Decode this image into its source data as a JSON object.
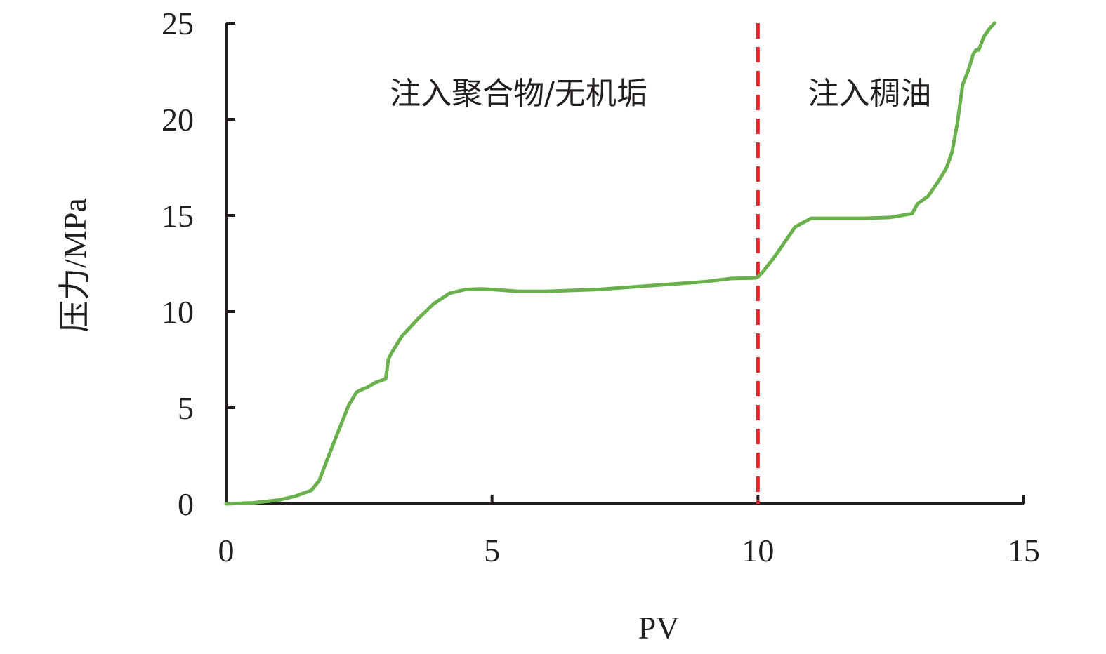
{
  "chart_data": {
    "type": "line",
    "title": "",
    "xlabel": "PV",
    "ylabel": "压力/MPa",
    "xlim": [
      0,
      15
    ],
    "ylim": [
      0,
      25
    ],
    "x_ticks": [
      0,
      5,
      10,
      15
    ],
    "y_ticks": [
      0,
      5,
      10,
      15,
      20,
      25
    ],
    "grid": false,
    "legend": "none",
    "colors": {
      "line": "#6ab04c",
      "divider": "#e0262b",
      "axis": "#231f20"
    },
    "series": [
      {
        "x": [
          0,
          0.5,
          1.0,
          1.3,
          1.6,
          1.75,
          1.9,
          2.1,
          2.3,
          2.45,
          2.55,
          2.65,
          2.8,
          2.9,
          3.0,
          3.05,
          3.1,
          3.3,
          3.6,
          3.9,
          4.2,
          4.5,
          4.8,
          5.0,
          5.5,
          6.0,
          6.5,
          7.0,
          7.5,
          8.0,
          8.5,
          9.0,
          9.5,
          9.95,
          10.0,
          10.1,
          10.3,
          10.5,
          10.7,
          11.0,
          11.5,
          12.0,
          12.5,
          12.9,
          13.0,
          13.2,
          13.4,
          13.55,
          13.65,
          13.75,
          13.85,
          13.95,
          14.05,
          14.1,
          14.15,
          14.25,
          14.35,
          14.45
        ],
        "y": [
          0,
          0.05,
          0.2,
          0.4,
          0.7,
          1.2,
          2.3,
          3.7,
          5.1,
          5.8,
          5.95,
          6.05,
          6.3,
          6.4,
          6.5,
          7.5,
          7.8,
          8.7,
          9.6,
          10.4,
          10.95,
          11.15,
          11.18,
          11.15,
          11.05,
          11.05,
          11.1,
          11.15,
          11.25,
          11.35,
          11.45,
          11.55,
          11.72,
          11.75,
          11.8,
          12.1,
          12.8,
          13.6,
          14.4,
          14.85,
          14.85,
          14.85,
          14.9,
          15.1,
          15.6,
          16.0,
          16.8,
          17.5,
          18.3,
          19.8,
          21.8,
          22.5,
          23.4,
          23.6,
          23.6,
          24.3,
          24.7,
          25.0
        ]
      }
    ],
    "divider_x": 10,
    "annotations": [
      {
        "text": "注入聚合物/无机垢",
        "x": 5.5,
        "y": 20.8
      },
      {
        "text": "注入稠油",
        "x": 12.1,
        "y": 20.8
      }
    ]
  }
}
